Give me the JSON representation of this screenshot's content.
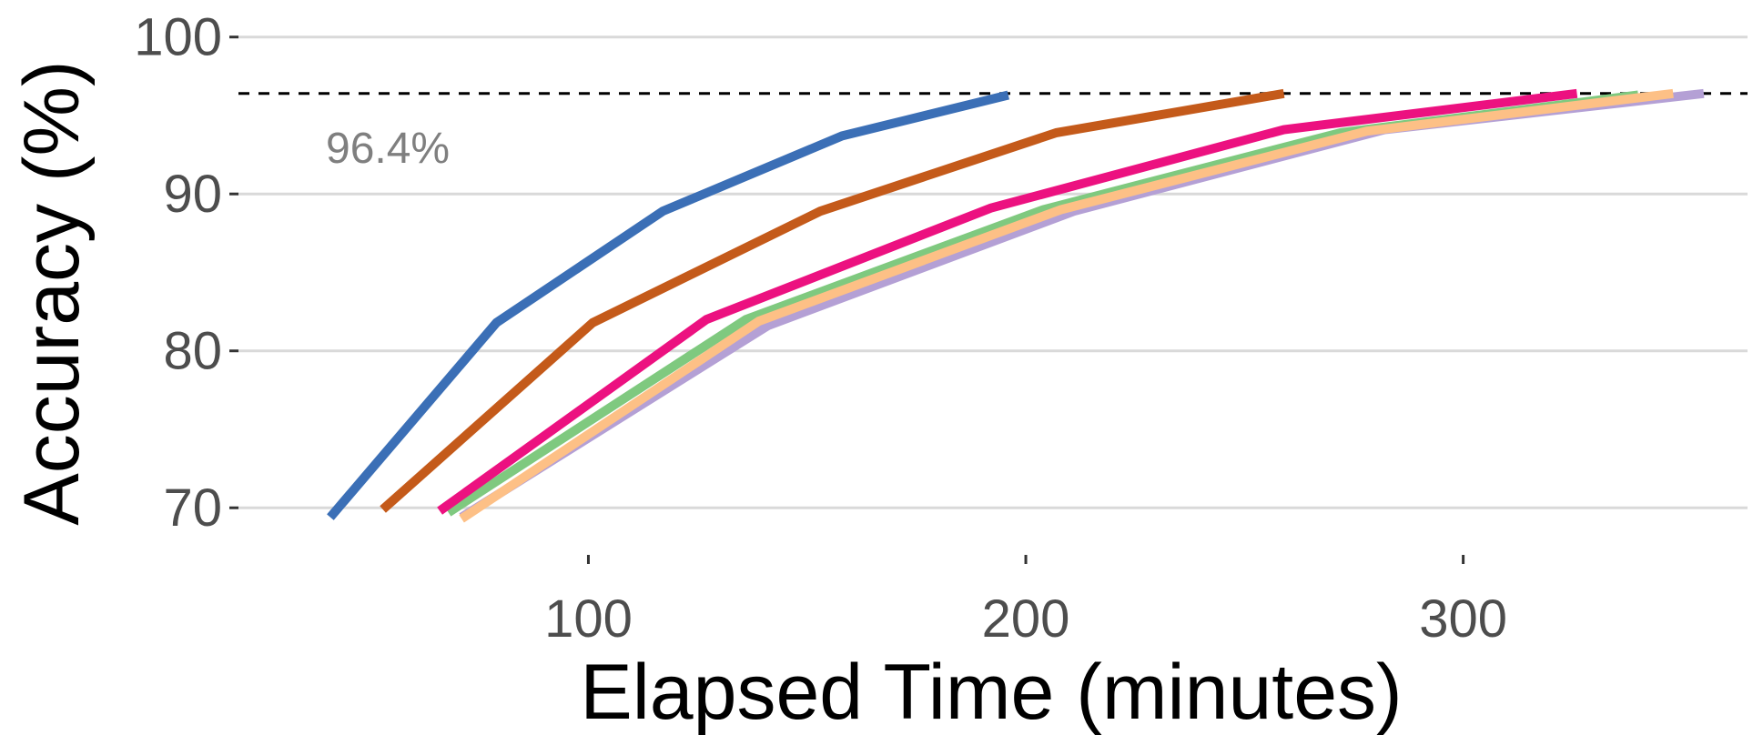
{
  "chart_data": {
    "type": "line",
    "xlabel": "Elapsed Time (minutes)",
    "ylabel": "Accuracy (%)",
    "xlim": [
      20,
      365
    ],
    "ylim": [
      67,
      101.2
    ],
    "x_ticks": [
      100,
      200,
      300
    ],
    "y_ticks": [
      70,
      80,
      90,
      100
    ],
    "grid": "horizontal major lines",
    "legend": "none",
    "reference_line": {
      "y": 96.4,
      "label": "96.4%",
      "style": "dashed"
    },
    "series": [
      {
        "color": "#3b6fb6",
        "points": [
          [
            41,
            69.4
          ],
          [
            79,
            81.8
          ],
          [
            117,
            88.9
          ],
          [
            158,
            93.7
          ],
          [
            196,
            96.3
          ]
        ]
      },
      {
        "color": "#c45a1a",
        "points": [
          [
            53,
            69.9
          ],
          [
            101,
            81.8
          ],
          [
            153,
            88.9
          ],
          [
            207,
            93.9
          ],
          [
            259,
            96.4
          ]
        ]
      },
      {
        "color": "#b4a0d5",
        "points": [
          [
            71,
            69.4
          ],
          [
            141,
            81.6
          ],
          [
            211,
            88.9
          ],
          [
            282,
            94.1
          ],
          [
            355,
            96.4
          ]
        ]
      },
      {
        "color": "#7fc97f",
        "points": [
          [
            68,
            69.7
          ],
          [
            136,
            82.0
          ],
          [
            204,
            89.0
          ],
          [
            272,
            93.9
          ],
          [
            340,
            96.3
          ]
        ]
      },
      {
        "color": "#fdc086",
        "points": [
          [
            71,
            69.3
          ],
          [
            139,
            81.9
          ],
          [
            208,
            89.0
          ],
          [
            278,
            94.0
          ],
          [
            348,
            96.4
          ]
        ]
      },
      {
        "color": "#ec1180",
        "points": [
          [
            66,
            69.8
          ],
          [
            127,
            82.0
          ],
          [
            192,
            89.1
          ],
          [
            259,
            94.1
          ],
          [
            326,
            96.4
          ]
        ]
      }
    ]
  }
}
